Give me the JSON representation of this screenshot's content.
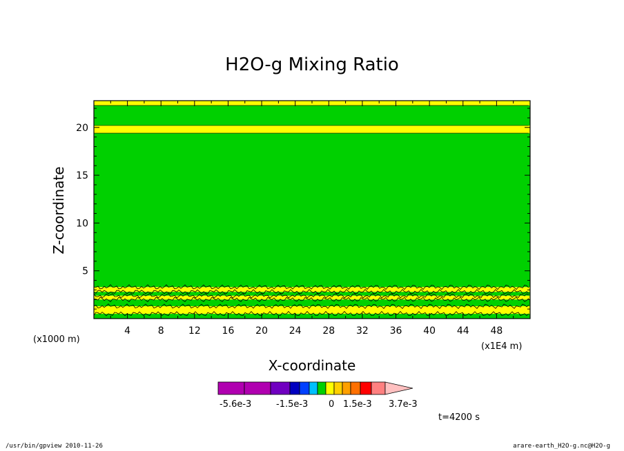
{
  "chart_data": {
    "type": "heatmap",
    "title": "H2O-g Mixing Ratio",
    "xlabel": "X-coordinate",
    "ylabel": "Z-coordinate",
    "x_unit_left": "(x1000 m)",
    "x_unit_right": "(x1E4 m)",
    "xlim": [
      0,
      52
    ],
    "ylim": [
      0,
      22.8
    ],
    "x_ticks": [
      "4",
      "8",
      "12",
      "16",
      "20",
      "24",
      "28",
      "32",
      "36",
      "40",
      "44",
      "48"
    ],
    "y_ticks": [
      "5",
      "10",
      "15",
      "20"
    ],
    "bands": [
      {
        "z_from": 0,
        "z_to": 0.5,
        "color": "#00d000"
      },
      {
        "z_from": 0.5,
        "z_to": 1.3,
        "color": "#ffff00"
      },
      {
        "z_from": 1.3,
        "z_to": 2.0,
        "color": "#00d000"
      },
      {
        "z_from": 2.0,
        "z_to": 2.4,
        "color": "#ffff00"
      },
      {
        "z_from": 2.4,
        "z_to": 2.8,
        "color": "#00d000"
      },
      {
        "z_from": 2.8,
        "z_to": 3.3,
        "color": "#ffff00"
      },
      {
        "z_from": 3.3,
        "z_to": 19.4,
        "color": "#00d000"
      },
      {
        "z_from": 19.4,
        "z_to": 20.2,
        "color": "#ffff00"
      },
      {
        "z_from": 20.2,
        "z_to": 22.3,
        "color": "#00d000"
      },
      {
        "z_from": 22.3,
        "z_to": 22.8,
        "color": "#ffff00"
      }
    ],
    "colorbar": {
      "colors": [
        "#b000b0",
        "#b000b0",
        "#7000c0",
        "#0000c0",
        "#0040ff",
        "#00c0ff",
        "#00d000",
        "#ffff00",
        "#ffd000",
        "#ffa000",
        "#ff7000",
        "#ff0000",
        "#ff8080",
        "#ffc0c0"
      ],
      "labels": [
        "-5.6e-3",
        "-1.5e-3",
        "0",
        "1.5e-3",
        "3.7e-3"
      ]
    },
    "time_label": "t=4200 s"
  },
  "footer": {
    "left": "/usr/bin/gpview  2010-11-26",
    "right": "arare-earth_H2O-g.nc@H2O-g"
  }
}
